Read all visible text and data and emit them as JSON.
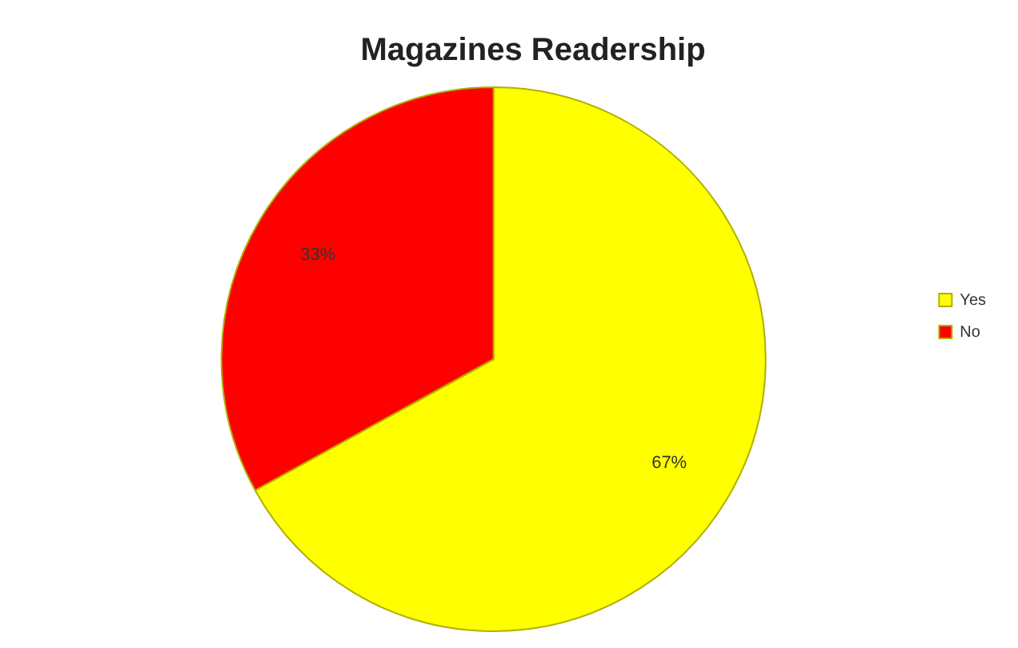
{
  "chart_data": {
    "type": "pie",
    "title": "Magazines Readership",
    "categories": [
      "Yes",
      "No"
    ],
    "values": [
      67,
      33
    ],
    "colors": [
      "#ffff00",
      "#ff0000"
    ],
    "value_labels": [
      "67%",
      "33%"
    ],
    "legend": "right"
  }
}
